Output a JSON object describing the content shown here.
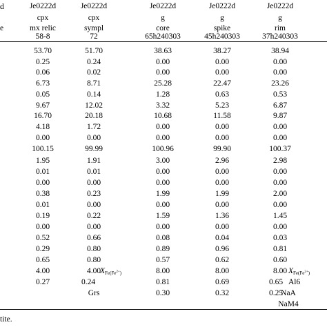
{
  "header": {
    "left_stub": [
      "d",
      "e"
    ],
    "columns": [
      {
        "sample": "Je0222d",
        "mineral": "cpx",
        "context": "mx relic",
        "analysis": "58-8"
      },
      {
        "sample": "Je0222d",
        "mineral": "cpx",
        "context": "sympl",
        "analysis": "72"
      },
      {
        "sample": "Je0222d",
        "mineral": "g",
        "context": "core",
        "analysis": "65h240303"
      },
      {
        "sample": "Je0222d",
        "mineral": "g",
        "context": "spike",
        "analysis": "45h240303"
      },
      {
        "sample": "Je0222d",
        "mineral": "g",
        "context": "rim",
        "analysis": "37h240303"
      }
    ]
  },
  "rows": [
    [
      "53.70",
      "51.70",
      "38.63",
      "38.27",
      "38.94"
    ],
    [
      "0.25",
      "0.24",
      "0.00",
      "0.00",
      "0.00"
    ],
    [
      "0.06",
      "0.02",
      "0.00",
      "0.00",
      "0.00"
    ],
    [
      "6.73",
      "8.71",
      "25.28",
      "22.47",
      "23.26"
    ],
    [
      "0.05",
      "0.14",
      "1.28",
      "0.63",
      "0.53"
    ],
    [
      "9.67",
      "12.02",
      "3.32",
      "5.23",
      "6.87"
    ],
    [
      "16.70",
      "20.18",
      "10.68",
      "11.58",
      "9.87"
    ],
    [
      "4.18",
      "1.72",
      "0.00",
      "0.00",
      "0.00"
    ],
    [
      "0.00",
      "0.00",
      "0.00",
      "0.00",
      "0.00"
    ],
    [
      "100.15",
      "99.99",
      "100.96",
      "99.90",
      "100.37"
    ],
    [
      "1.95",
      "1.91",
      "3.00",
      "2.96",
      "2.98"
    ],
    [
      "0.01",
      "0.01",
      "0.00",
      "0.00",
      "0.00"
    ],
    [
      "0.00",
      "0.00",
      "0.00",
      "0.00",
      "0.00"
    ],
    [
      "0.38",
      "0.23",
      "1.99",
      "1.99",
      "2.00"
    ],
    [
      "0.01",
      "0.00",
      "0.00",
      "0.00",
      "0.00"
    ],
    [
      "0.19",
      "0.22",
      "1.59",
      "1.36",
      "1.45"
    ],
    [
      "0.00",
      "0.00",
      "0.00",
      "0.00",
      "0.00"
    ],
    [
      "0.52",
      "0.66",
      "0.08",
      "0.04",
      "0.03"
    ],
    [
      "0.29",
      "0.80",
      "0.89",
      "0.96",
      "0.81"
    ],
    [
      "0.65",
      "0.80",
      "0.57",
      "0.62",
      "0.60"
    ],
    [
      "4.00",
      "4.00",
      "8.00",
      "8.00",
      "8.00"
    ],
    [
      "0.27",
      "0.24",
      "0.81",
      "0.69",
      "0.65"
    ],
    [
      "",
      "Grs",
      "0.30",
      "0.32",
      "0.25"
    ]
  ],
  "inline_labels": {
    "row21_col2": {
      "main": "X",
      "sub": "Fe(Fe",
      "sup": "2+",
      "close": ")"
    },
    "row21_col5": {
      "main": "X",
      "sub": "Fe(Fe",
      "sup": "2+",
      "close": ")"
    },
    "row22_col5": "Al6",
    "extra_col5": [
      "NaA",
      "NaM4"
    ]
  },
  "row_positions_note": "",
  "footer": "tite."
}
